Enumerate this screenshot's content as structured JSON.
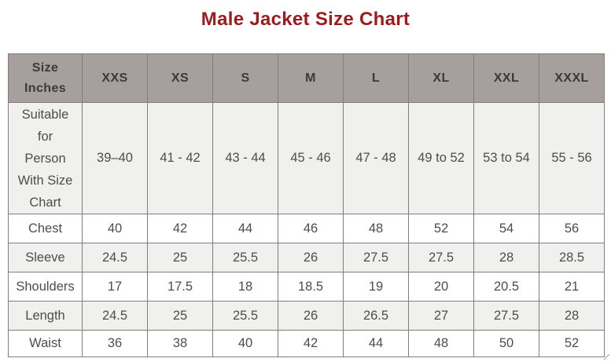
{
  "page": {
    "title": "Male Jacket Size Chart"
  },
  "colors": {
    "title_text": "#9b1b1f",
    "header_bg": "#a79e9e",
    "header_text": "#3a3a3a",
    "row_alt_bg": "#f0f0ef",
    "row_bg": "#ffffff",
    "body_text": "#4d4d4d",
    "border": "#7f7d7d"
  },
  "table": {
    "header": [
      "Size Inches",
      "XXS",
      "XS",
      "S",
      "M",
      "L",
      "XL",
      "XXL",
      "XXXL"
    ],
    "rows": [
      {
        "label": "Suitable for Person With Size Chart",
        "values": [
          "39–40",
          "41 - 42",
          "43 - 44",
          "45 - 46",
          "47 - 48",
          "49 to 52",
          "53 to 54",
          "55 - 56"
        ]
      },
      {
        "label": "Chest",
        "values": [
          "40",
          "42",
          "44",
          "46",
          "48",
          "52",
          "54",
          "56"
        ]
      },
      {
        "label": "Sleeve",
        "values": [
          "24.5",
          "25",
          "25.5",
          "26",
          "27.5",
          "27.5",
          "28",
          "28.5"
        ]
      },
      {
        "label": "Shoulders",
        "values": [
          "17",
          "17.5",
          "18",
          "18.5",
          "19",
          "20",
          "20.5",
          "21"
        ]
      },
      {
        "label": "Length",
        "values": [
          "24.5",
          "25",
          "25.5",
          "26",
          "26.5",
          "27",
          "27.5",
          "28"
        ]
      },
      {
        "label": "Waist",
        "values": [
          "36",
          "38",
          "40",
          "42",
          "44",
          "48",
          "50",
          "52"
        ]
      }
    ]
  }
}
